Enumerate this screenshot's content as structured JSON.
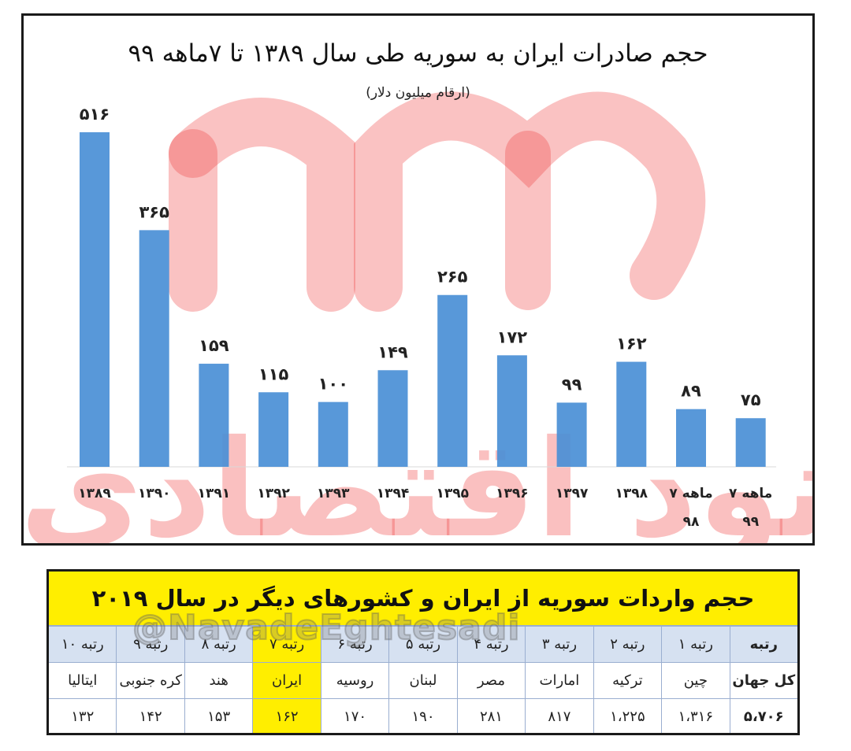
{
  "chart_data": {
    "type": "bar",
    "title": "حجم صادرات ایران به سوریه طی سال ۱۳۸۹ تا ۷ماهه ۹۹",
    "subtitle": "(ارقام میلیون دلار)",
    "categories": [
      "۱۳۸۹",
      "۱۳۹۰",
      "۱۳۹۱",
      "۱۳۹۲",
      "۱۳۹۳",
      "۱۳۹۴",
      "۱۳۹۵",
      "۱۳۹۶",
      "۱۳۹۷",
      "۱۳۹۸",
      "۷ ماهه ۹۸",
      "۷ ماهه ۹۹"
    ],
    "values": [
      516,
      365,
      159,
      115,
      100,
      149,
      265,
      172,
      99,
      162,
      89,
      75
    ],
    "value_labels": [
      "۵۱۶",
      "۳۶۵",
      "۱۵۹",
      "۱۱۵",
      "۱۰۰",
      "۱۴۹",
      "۲۶۵",
      "۱۷۲",
      "۹۹",
      "۱۶۲",
      "۸۹",
      "۷۵"
    ],
    "ylim": [
      0,
      516
    ],
    "grid": false,
    "color": "#4a8fd6"
  },
  "watermark": {
    "brand_text": "نود اقتصادی",
    "brand_color": "#f04040"
  },
  "table": {
    "title": "حجم واردات سوریه از ایران و کشورهای دیگر در سال ۲۰۱۹",
    "handle": "@NavadeEghtesadi",
    "highlight_color": "#ffee00",
    "columns": [
      {
        "rank": "رتبه",
        "country": "کل جهان",
        "value": "۵،۷۰۶"
      },
      {
        "rank": "رتبه ۱",
        "country": "چین",
        "value": "۱،۳۱۶"
      },
      {
        "rank": "رتبه ۲",
        "country": "ترکیه",
        "value": "۱،۲۲۵"
      },
      {
        "rank": "رتبه ۳",
        "country": "امارات",
        "value": "۸۱۷"
      },
      {
        "rank": "رتبه ۴",
        "country": "مصر",
        "value": "۲۸۱"
      },
      {
        "rank": "رتبه ۵",
        "country": "لبنان",
        "value": "۱۹۰"
      },
      {
        "rank": "رتبه ۶",
        "country": "روسیه",
        "value": "۱۷۰"
      },
      {
        "rank": "رتبه ۷",
        "country": "ایران",
        "value": "۱۶۲",
        "highlight": true
      },
      {
        "rank": "رتبه ۸",
        "country": "هند",
        "value": "۱۵۳"
      },
      {
        "rank": "رتبه ۹",
        "country": "کره جنوبی",
        "value": "۱۴۲"
      },
      {
        "rank": "رتبه ۱۰",
        "country": "ایتالیا",
        "value": "۱۳۲"
      }
    ]
  }
}
